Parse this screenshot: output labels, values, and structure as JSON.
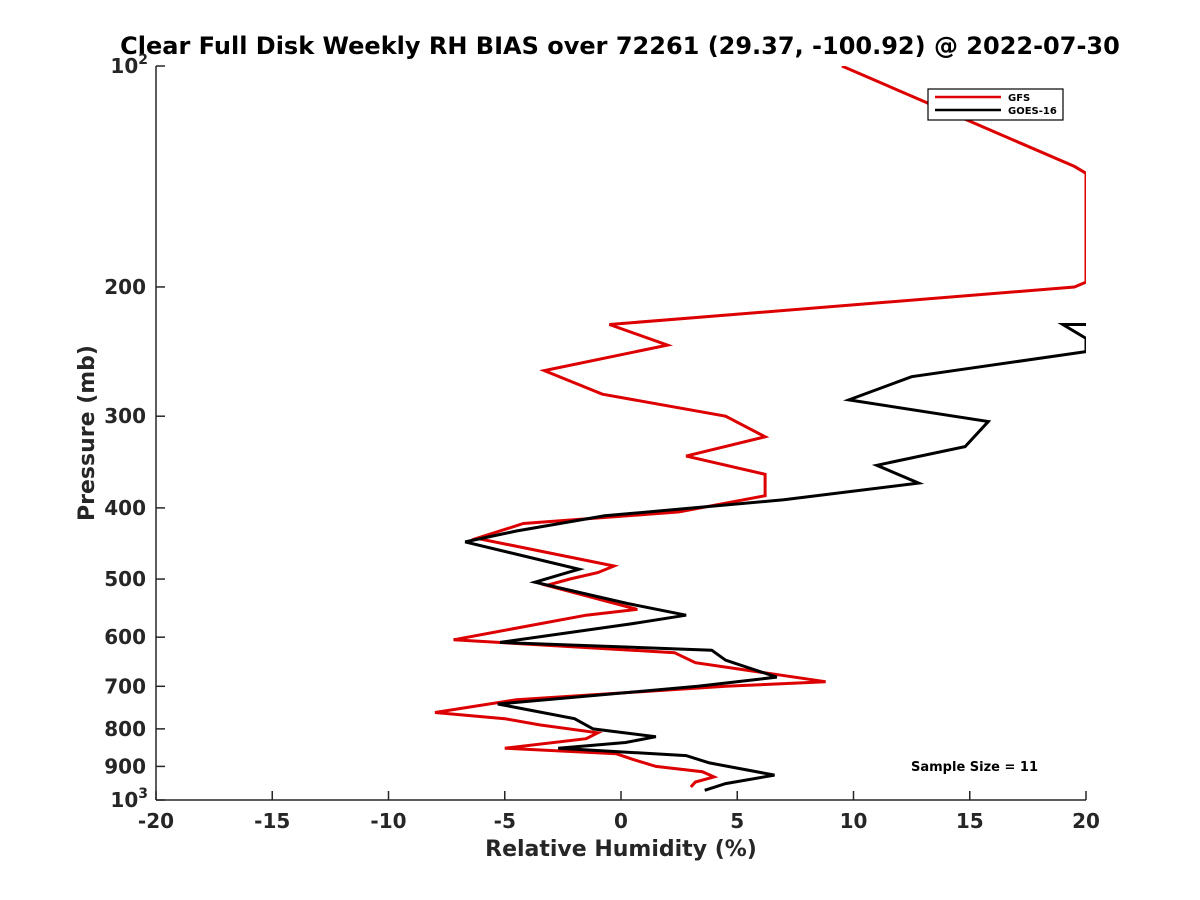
{
  "chart_data": {
    "type": "line",
    "title": "Clear Full Disk Weekly RH BIAS over 72261 (29.37, -100.92) @ 2022-07-30",
    "xlabel": "Relative Humidity (%)",
    "ylabel": "Pressure (mb)",
    "xlim": [
      -20,
      20
    ],
    "ylim": [
      100,
      1000
    ],
    "y_scale": "log",
    "y_reversed": true,
    "x_ticks": [
      "-20",
      "-15",
      "-10",
      "-5",
      "0",
      "5",
      "10",
      "15",
      "20"
    ],
    "y_ticks": [
      {
        "value": 100,
        "base": "10",
        "exp": "2"
      },
      {
        "value": 200,
        "base": "200",
        "exp": ""
      },
      {
        "value": 300,
        "base": "300",
        "exp": ""
      },
      {
        "value": 400,
        "base": "400",
        "exp": ""
      },
      {
        "value": 500,
        "base": "500",
        "exp": ""
      },
      {
        "value": 600,
        "base": "600",
        "exp": ""
      },
      {
        "value": 700,
        "base": "700",
        "exp": ""
      },
      {
        "value": 800,
        "base": "800",
        "exp": ""
      },
      {
        "value": 900,
        "base": "900",
        "exp": ""
      },
      {
        "value": 1000,
        "base": "10",
        "exp": "3"
      }
    ],
    "legend_position": "top-right",
    "annotation": "Sample Size = 11",
    "grid": false,
    "series": [
      {
        "name": "GFS",
        "color": "#dd0000",
        "points": [
          [
            9.5,
            100
          ],
          [
            19.5,
            137
          ],
          [
            20.0,
            140
          ],
          [
            20.0,
            197
          ],
          [
            19.5,
            200
          ],
          [
            -0.5,
            225
          ],
          [
            2.0,
            240
          ],
          [
            -3.3,
            260
          ],
          [
            -0.8,
            280
          ],
          [
            4.5,
            300
          ],
          [
            6.2,
            320
          ],
          [
            2.8,
            340
          ],
          [
            6.2,
            360
          ],
          [
            6.2,
            385
          ],
          [
            2.5,
            405
          ],
          [
            -4.2,
            420
          ],
          [
            -6.2,
            440
          ],
          [
            -0.3,
            480
          ],
          [
            -1.0,
            490
          ],
          [
            -2.2,
            500
          ],
          [
            -3.2,
            510
          ],
          [
            0.7,
            550
          ],
          [
            -1.5,
            560
          ],
          [
            -7.2,
            605
          ],
          [
            2.3,
            630
          ],
          [
            3.2,
            650
          ],
          [
            8.8,
            690
          ],
          [
            4.5,
            700
          ],
          [
            -4.5,
            730
          ],
          [
            -8.0,
            760
          ],
          [
            -5.0,
            775
          ],
          [
            -3.5,
            790
          ],
          [
            -1.0,
            810
          ],
          [
            -1.5,
            825
          ],
          [
            -5.0,
            850
          ],
          [
            -0.2,
            865
          ],
          [
            0.5,
            880
          ],
          [
            1.5,
            900
          ],
          [
            3.5,
            915
          ],
          [
            4.0,
            930
          ],
          [
            3.2,
            945
          ],
          [
            3.0,
            960
          ]
        ]
      },
      {
        "name": "GOES-16",
        "color": "#000000",
        "points": [
          [
            20.0,
            225
          ],
          [
            19.0,
            225
          ],
          [
            20.0,
            235
          ],
          [
            20.0,
            245
          ],
          [
            12.5,
            265
          ],
          [
            9.8,
            285
          ],
          [
            15.8,
            305
          ],
          [
            14.8,
            330
          ],
          [
            11.0,
            350
          ],
          [
            12.8,
            370
          ],
          [
            7.0,
            390
          ],
          [
            -0.7,
            410
          ],
          [
            -4.5,
            430
          ],
          [
            -6.7,
            445
          ],
          [
            -1.8,
            485
          ],
          [
            -2.3,
            490
          ],
          [
            -3.7,
            505
          ],
          [
            0.3,
            540
          ],
          [
            2.8,
            560
          ],
          [
            0.5,
            575
          ],
          [
            -5.2,
            610
          ],
          [
            3.9,
            625
          ],
          [
            4.5,
            645
          ],
          [
            6.7,
            680
          ],
          [
            3.3,
            700
          ],
          [
            -5.3,
            740
          ],
          [
            -2.0,
            775
          ],
          [
            -1.2,
            800
          ],
          [
            1.5,
            820
          ],
          [
            0.2,
            835
          ],
          [
            -2.7,
            850
          ],
          [
            2.8,
            870
          ],
          [
            3.8,
            890
          ],
          [
            6.6,
            925
          ],
          [
            4.5,
            950
          ],
          [
            3.6,
            970
          ]
        ]
      }
    ]
  }
}
